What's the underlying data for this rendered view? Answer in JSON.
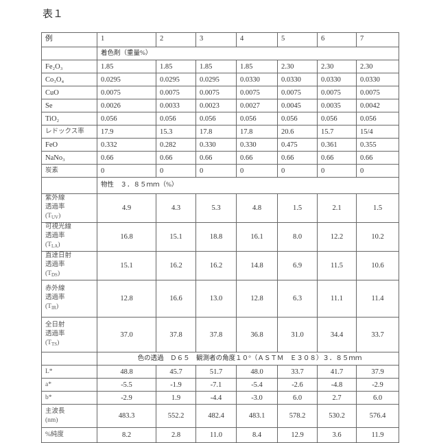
{
  "title": "表１",
  "header": {
    "label": "例",
    "examples": [
      "1",
      "2",
      "3",
      "4",
      "5",
      "6",
      "7"
    ]
  },
  "sections": {
    "colorants": "着色剤（重量%）",
    "properties": "物性　３．８５ｍｍ（%）",
    "color": "色の透過　Ｄ６５　観測者の角度１０°（ＡＳＴＭ　Ｅ３０８）３．８５ｍｍ"
  },
  "colorant_rows": [
    {
      "label": "Fe₂O₃",
      "values": [
        "1.85",
        "1.85",
        "1.85",
        "1.85",
        "2.30",
        "2.30",
        "2.30"
      ]
    },
    {
      "label": "Co₃O₄",
      "values": [
        "0.0295",
        "0.0295",
        "0.0295",
        "0.0330",
        "0.0330",
        "0.0330",
        "0.0330"
      ]
    },
    {
      "label": "CuO",
      "values": [
        "0.0075",
        "0.0075",
        "0.0075",
        "0.0075",
        "0.0075",
        "0.0075",
        "0.0075"
      ]
    },
    {
      "label": "Se",
      "values": [
        "0.0026",
        "0.0033",
        "0.0023",
        "0.0027",
        "0.0045",
        "0.0035",
        "0.0042"
      ]
    },
    {
      "label": "TiO₂",
      "values": [
        "0.056",
        "0.056",
        "0.056",
        "0.056",
        "0.056",
        "0.056",
        "0.056"
      ]
    },
    {
      "label": "レドックス率",
      "values": [
        "17.9",
        "15.3",
        "17.8",
        "17.8",
        "20.6",
        "15.7",
        "15/4"
      ]
    },
    {
      "label": "FeO",
      "values": [
        "0.332",
        "0.282",
        "0.330",
        "0.330",
        "0.475",
        "0.361",
        "0.355"
      ]
    },
    {
      "label": "NaNo₃",
      "values": [
        "0.66",
        "0.66",
        "0.66",
        "0.66",
        "0.66",
        "0.66",
        "0.66"
      ]
    },
    {
      "label": "炭素",
      "values": [
        "0",
        "0",
        "0",
        "0",
        "0",
        "0",
        "0"
      ]
    }
  ],
  "property_rows": [
    {
      "lines": [
        "紫外線",
        "透過率"
      ],
      "symbol": "T",
      "sub": "UV",
      "values": [
        "4.9",
        "4.3",
        "5.3",
        "4.8",
        "1.5",
        "2.1",
        "1.5"
      ]
    },
    {
      "lines": [
        "可視光線",
        "透過率"
      ],
      "symbol": "T",
      "sub": "LA",
      "values": [
        "16.8",
        "15.1",
        "18.8",
        "16.1",
        "8.0",
        "12.2",
        "10.2"
      ]
    },
    {
      "lines": [
        "直達日射",
        "透過率"
      ],
      "symbol": "T",
      "sub": "DS",
      "values": [
        "15.1",
        "16.2",
        "16.2",
        "14.8",
        "6.9",
        "11.5",
        "10.6"
      ]
    },
    {
      "lines": [
        "赤外線",
        "透過率"
      ],
      "symbol": "T",
      "sub": "IR",
      "values": [
        "12.8",
        "16.6",
        "13.0",
        "12.8",
        "6.3",
        "11.1",
        "11.4"
      ]
    },
    {
      "lines": [
        "全日射",
        "透過率"
      ],
      "symbol": "T",
      "sub": "TS",
      "values": [
        "37.0",
        "37.8",
        "37.8",
        "36.8",
        "31.0",
        "34.4",
        "33.7"
      ]
    }
  ],
  "color_rows": [
    {
      "label": "L*",
      "values": [
        "48.8",
        "45.7",
        "51.7",
        "48.0",
        "33.7",
        "41.7",
        "37.9"
      ]
    },
    {
      "label": "a*",
      "values": [
        "-5.5",
        "-1.9",
        "-7.1",
        "-5.4",
        "-2.6",
        "-4.8",
        "-2.9"
      ]
    },
    {
      "label": "b*",
      "values": [
        "-2.9",
        "1.9",
        "-4.4",
        "-3.0",
        "6.0",
        "2.7",
        "6.0"
      ]
    },
    {
      "label": "主波長\n(nm)",
      "values": [
        "483.3",
        "552.2",
        "482.4",
        "483.1",
        "578.2",
        "530.2",
        "576.4"
      ]
    },
    {
      "label": "%純度",
      "values": [
        "8.2",
        "2.8",
        "11.0",
        "8.4",
        "12.9",
        "3.6",
        "11.9"
      ]
    }
  ]
}
